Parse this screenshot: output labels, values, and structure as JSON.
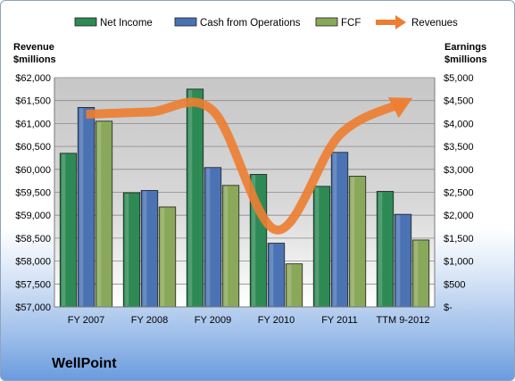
{
  "company": "WellPoint",
  "chart_data": {
    "type": "bar",
    "categories": [
      "FY 2007",
      "FY 2008",
      "FY 2009",
      "FY 2010",
      "FY 2011",
      "TTM 9-2012"
    ],
    "left_axis": {
      "label_line1": "Revenue",
      "label_line2": "$millions",
      "ylim": [
        57000,
        62000
      ],
      "ticks": [
        "$57,000",
        "$57,500",
        "$58,000",
        "$58,500",
        "$59,000",
        "$59,500",
        "$60,000",
        "$60,500",
        "$61,000",
        "$61,500",
        "$62,000"
      ]
    },
    "right_axis": {
      "label_line1": "Earnings",
      "label_line2": "$millions",
      "ylim": [
        0,
        5000
      ],
      "ticks": [
        "$-",
        "$500",
        "$1,000",
        "$1,500",
        "$2,000",
        "$2,500",
        "$3,000",
        "$3,500",
        "$4,000",
        "$4,500",
        "$5,000"
      ]
    },
    "series": [
      {
        "name": "Net Income",
        "type": "bar",
        "axis": "right",
        "color": "#2e8a55",
        "values": [
          3350,
          2490,
          4750,
          2890,
          2630,
          2520
        ]
      },
      {
        "name": "Cash from Operations",
        "type": "bar",
        "axis": "right",
        "color": "#4b73b4",
        "values": [
          4350,
          2540,
          3040,
          1390,
          3370,
          2020
        ]
      },
      {
        "name": "FCF",
        "type": "bar",
        "axis": "right",
        "color": "#8aa85a",
        "values": [
          4050,
          2180,
          2650,
          940,
          2850,
          1460
        ]
      },
      {
        "name": "Revenues",
        "type": "line",
        "axis": "left",
        "color": "#ed7d31",
        "values": [
          61200,
          61250,
          61280,
          58680,
          60750,
          61450
        ]
      }
    ],
    "grid": true,
    "legend_position": "top"
  }
}
